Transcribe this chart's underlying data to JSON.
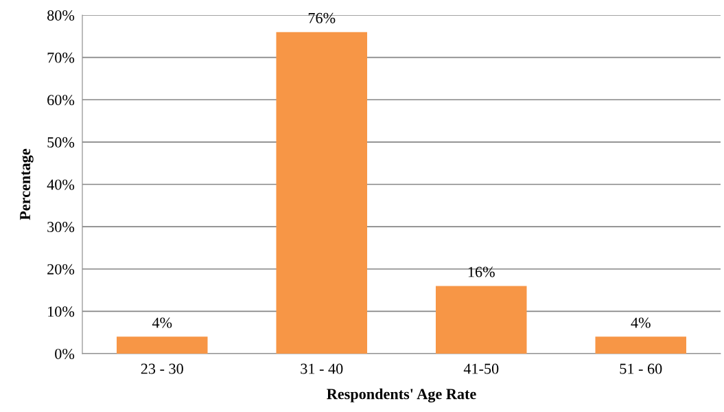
{
  "chart_data": {
    "type": "bar",
    "xlabel": "Respondents' Age Rate",
    "ylabel": "Percentage",
    "categories": [
      "23 - 30",
      "31 - 40",
      "41-50",
      "51 - 60"
    ],
    "values": [
      4,
      76,
      16,
      4
    ],
    "value_labels": [
      "4%",
      "76%",
      "16%",
      "4%"
    ],
    "color": "#f79646",
    "ylim": [
      0,
      80
    ],
    "yticks": [
      {
        "value": 0,
        "label": "0%"
      },
      {
        "value": 10,
        "label": "10%"
      },
      {
        "value": 20,
        "label": "20%"
      },
      {
        "value": 30,
        "label": "30%"
      },
      {
        "value": 40,
        "label": "40%"
      },
      {
        "value": 50,
        "label": "50%"
      },
      {
        "value": 60,
        "label": "60%"
      },
      {
        "value": 70,
        "label": "70%"
      },
      {
        "value": 80,
        "label": "80%"
      }
    ],
    "grid": "y"
  }
}
